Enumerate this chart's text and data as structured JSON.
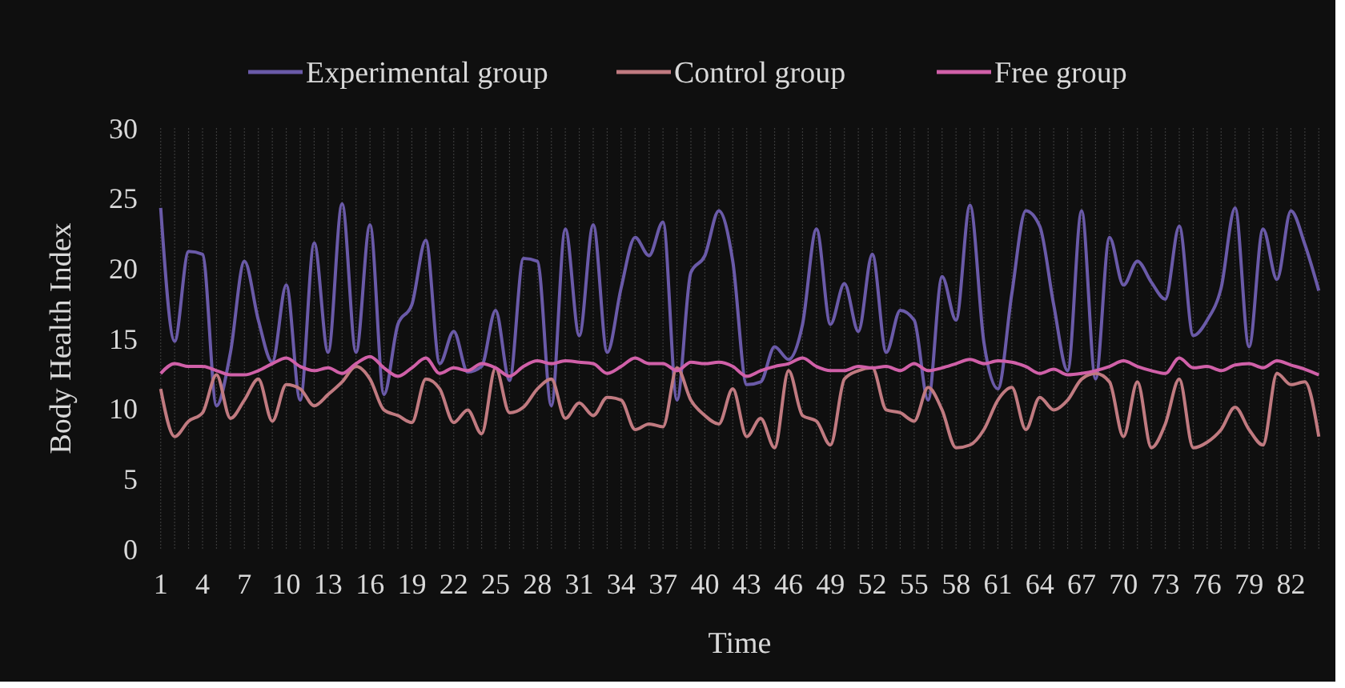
{
  "chart_data": {
    "type": "line",
    "xlabel": "Time",
    "ylabel": "Body Health Index",
    "categories": [
      "1",
      null,
      null,
      "4",
      null,
      null,
      "7",
      null,
      null,
      "10",
      null,
      null,
      "13",
      null,
      null,
      "16",
      null,
      null,
      "19",
      null,
      null,
      "22",
      null,
      null,
      "25",
      null,
      null,
      "28",
      null,
      null,
      "31",
      null,
      null,
      "34",
      null,
      null,
      "37",
      null,
      null,
      "40",
      null,
      null,
      "43",
      null,
      null,
      "46",
      null,
      null,
      "49",
      null,
      null,
      "52",
      null,
      null,
      "55",
      null,
      null,
      "58",
      null,
      null,
      "61",
      null,
      null,
      "64",
      null,
      null,
      "67",
      null,
      null,
      "70",
      null,
      null,
      "73",
      null,
      null,
      "76",
      null,
      null,
      "79",
      null,
      null,
      "82",
      null,
      null
    ],
    "ylim": [
      0,
      30
    ],
    "yticks": [
      0,
      5,
      10,
      15,
      20,
      25,
      30
    ],
    "grid": "x",
    "legend": "top",
    "marker": "none",
    "line_style": "solid",
    "series": [
      {
        "name": "Experimental group",
        "color": "#6a5aa8",
        "values": [
          24.3,
          14.8,
          21.2,
          21,
          10.2,
          14,
          20.5,
          16.3,
          13.3,
          18.8,
          10.6,
          21.8,
          14,
          24.6,
          14,
          23.1,
          11,
          16,
          17.4,
          22,
          13.2,
          15.5,
          12.6,
          13,
          17,
          12,
          20.7,
          20.5,
          10.2,
          22.8,
          15.2,
          23.1,
          14,
          18.6,
          22.2,
          20.9,
          23.3,
          10.6,
          19.7,
          20.9,
          24.1,
          20.5,
          11.7,
          11.9,
          14.4,
          13.5,
          16,
          22.8,
          16,
          18.9,
          15.5,
          21,
          14,
          17,
          16.3,
          10.6,
          19.4,
          16.3,
          24.5,
          14.7,
          11.4,
          18.2,
          24.1,
          23,
          17.4,
          12.7,
          24.1,
          12.1,
          22.2,
          18.8,
          20.5,
          19,
          17.8,
          23,
          15.2,
          16.3,
          18.6,
          24.3,
          14.4,
          22.8,
          19.2,
          24.1,
          21.7,
          18.4
        ]
      },
      {
        "name": "Control group",
        "color": "#c07a80",
        "values": [
          11.4,
          8,
          9.1,
          9.7,
          12.4,
          9.3,
          10.6,
          12.1,
          9.1,
          11.7,
          11.4,
          10.2,
          11,
          11.9,
          13,
          12.1,
          9.9,
          9.5,
          9,
          12.1,
          11.4,
          9,
          9.9,
          8.2,
          12.9,
          9.7,
          10.1,
          11.4,
          12.1,
          9.3,
          10.4,
          9.5,
          10.8,
          10.6,
          8.5,
          8.9,
          8.7,
          12.9,
          10.6,
          9.5,
          8.9,
          11.4,
          8,
          9.3,
          7.2,
          12.7,
          9.5,
          9.1,
          7.4,
          12.1,
          12.7,
          12.9,
          9.9,
          9.7,
          9.1,
          11.5,
          9.9,
          7.2,
          7.4,
          8.5,
          10.6,
          11.5,
          8.5,
          10.8,
          9.9,
          10.6,
          12.1,
          12.5,
          11.9,
          8,
          11.9,
          7.2,
          8.9,
          12.1,
          7.2,
          7.6,
          8.5,
          10.1,
          8.5,
          7.4,
          12.5,
          11.7,
          11.9,
          8
        ]
      },
      {
        "name": "Free group",
        "color": "#d060a8",
        "values": [
          12.5,
          13.2,
          13,
          13,
          12.7,
          12.4,
          12.4,
          12.7,
          13.2,
          13.6,
          13,
          12.7,
          12.9,
          12.5,
          13.2,
          13.7,
          12.9,
          12.3,
          12.9,
          13.6,
          12.5,
          12.9,
          12.7,
          13.2,
          12.9,
          12.3,
          13,
          13.4,
          13.2,
          13.4,
          13.3,
          13.2,
          12.5,
          13,
          13.6,
          13.2,
          13.2,
          12.7,
          13.3,
          13.2,
          13.3,
          13,
          12.3,
          12.7,
          13,
          13.2,
          13.6,
          13,
          12.7,
          12.7,
          13,
          12.9,
          13,
          12.7,
          13.2,
          12.7,
          12.9,
          13.2,
          13.5,
          13.2,
          13.4,
          13.3,
          13,
          12.5,
          12.8,
          12.4,
          12.5,
          12.7,
          13,
          13.4,
          13,
          12.7,
          12.5,
          13.6,
          12.9,
          13,
          12.7,
          13.1,
          13.2,
          12.9,
          13.4,
          13.1,
          12.8,
          12.4
        ]
      }
    ]
  }
}
